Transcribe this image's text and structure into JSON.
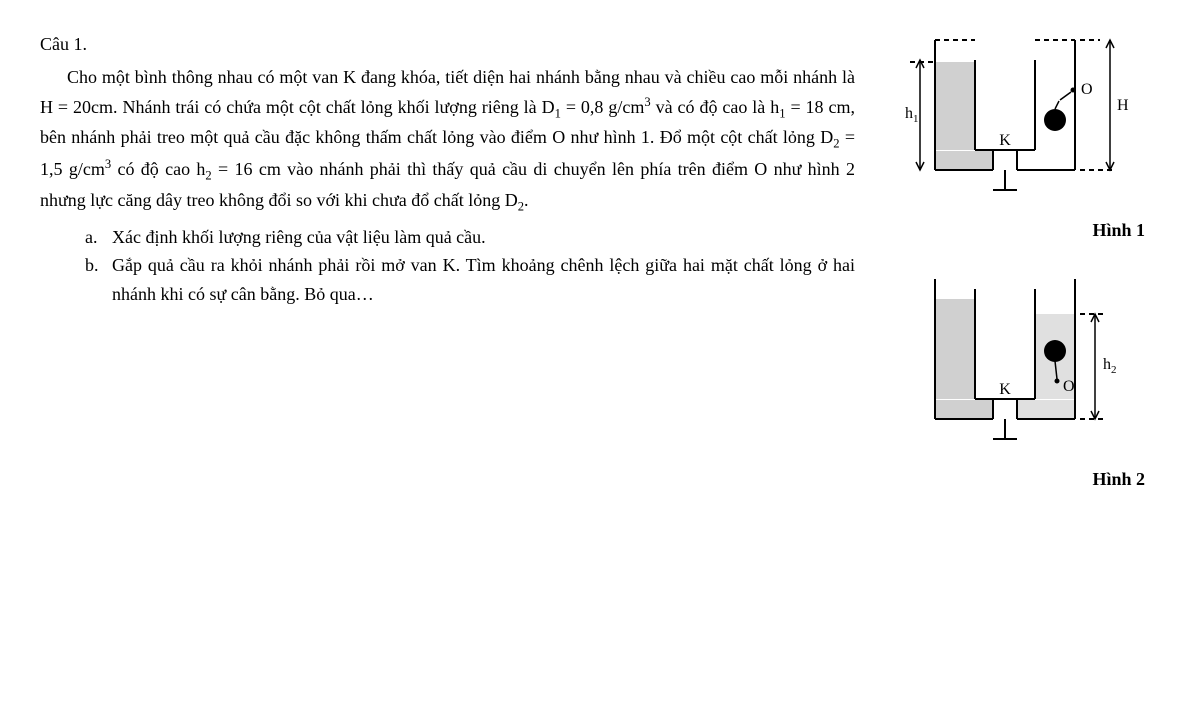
{
  "question": {
    "label": "Câu 1.",
    "body_html": "Cho một bình thông nhau có một van K đang khóa, tiết diện hai nhánh bằng nhau và chiều cao mỗi nhánh là H = 20cm. Nhánh trái có chứa một cột chất lỏng khối lượng riêng là D<sub>1</sub> = 0,8 g/cm<sup>3</sup> và có độ cao là h<sub>1</sub> = 18 cm, bên nhánh phải treo một quả cầu đặc không thấm chất lỏng vào điểm O như hình 1. Đổ một cột chất lỏng D<sub>2</sub> = 1,5 g/cm<sup>3</sup> có độ cao h<sub>2</sub> = 16 cm vào nhánh phải thì thấy quả cầu di chuyển lên phía trên điểm O như hình 2 nhưng lực căng dây treo không đổi so với khi chưa đổ chất lỏng D<sub>2</sub>.",
    "parts": [
      {
        "letter": "a.",
        "text": "Xác định khối lượng riêng của vật liệu làm quả cầu."
      },
      {
        "letter": "b.",
        "text": "Gắp quả cầu ra khỏi nhánh phải rồi mở van K. Tìm khoảng chênh lệch giữa hai mặt chất lỏng ở hai nhánh khi có sự cân bằng. Bỏ qua…"
      }
    ]
  },
  "figures": {
    "fig1": {
      "caption": "Hình 1",
      "labels": {
        "h1": "h₁",
        "H": "H",
        "K": "K",
        "O": "O"
      },
      "colors": {
        "stroke": "#000000",
        "fill_liquid": "#d0d0d0",
        "bg": "#ffffff",
        "ball": "#000000"
      },
      "stroke_width": 2
    },
    "fig2": {
      "caption": "Hình 2",
      "labels": {
        "h2": "h₂",
        "K": "K",
        "O": "O"
      },
      "colors": {
        "stroke": "#000000",
        "fill_liquid_left": "#d0d0d0",
        "fill_liquid_right": "#e0e0e0",
        "bg": "#ffffff",
        "ball": "#000000"
      },
      "stroke_width": 2
    }
  }
}
